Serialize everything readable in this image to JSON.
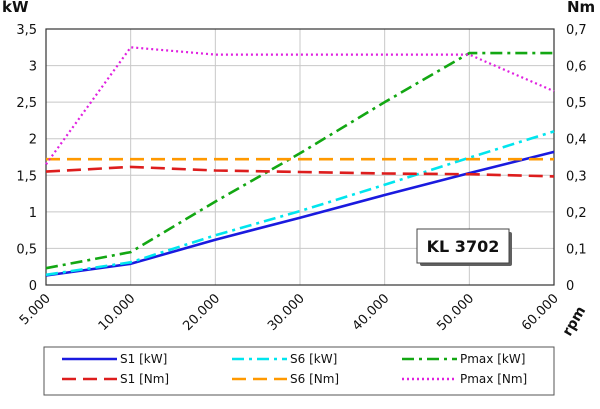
{
  "chart_data": {
    "type": "line",
    "title": "",
    "xlabel": "rpm",
    "ylabel_left": "kW",
    "ylabel_right": "Nm",
    "badge": "KL 3702",
    "x_categories": [
      "5.000",
      "10.000",
      "20.000",
      "30.000",
      "40.000",
      "50.000",
      "60.000"
    ],
    "x_values": [
      5000,
      10000,
      20000,
      30000,
      40000,
      50000,
      60000
    ],
    "y_left_ticks": [
      "0",
      "0,5",
      "1",
      "1,5",
      "2",
      "2,5",
      "3",
      "3,5"
    ],
    "y_right_ticks": [
      "0",
      "0,1",
      "0,2",
      "0,3",
      "0,4",
      "0,5",
      "0,6",
      "0,7"
    ],
    "ylim_left": [
      0,
      3.5
    ],
    "ylim_right": [
      0,
      0.7
    ],
    "grid": true,
    "legend_placement": "bottom",
    "series": [
      {
        "name": "S1 [kW]",
        "axis": "left",
        "color": "#1a1adf",
        "dash": "solid",
        "x": [
          5000,
          10000,
          20000,
          30000,
          40000,
          50000,
          60000
        ],
        "y": [
          0.13,
          0.29,
          0.62,
          0.92,
          1.23,
          1.53,
          1.82
        ]
      },
      {
        "name": "S6 [kW]",
        "axis": "left",
        "color": "#00e5ee",
        "dash": "dashdot",
        "x": [
          5000,
          10000,
          20000,
          30000,
          40000,
          50000,
          60000
        ],
        "y": [
          0.14,
          0.31,
          0.68,
          1.01,
          1.37,
          1.74,
          2.1
        ]
      },
      {
        "name": "Pmax [kW]",
        "axis": "left",
        "color": "#13a713",
        "dash": "dashdot",
        "x": [
          5000,
          10000,
          20000,
          30000,
          40000,
          50000,
          60000
        ],
        "y": [
          0.23,
          0.45,
          1.14,
          1.8,
          2.5,
          3.17,
          3.17
        ]
      },
      {
        "name": "S1 [Nm]",
        "axis": "right",
        "color": "#dd1d1d",
        "dash": "dashed",
        "x": [
          5000,
          10000,
          20000,
          30000,
          40000,
          50000,
          60000
        ],
        "y": [
          0.31,
          0.323,
          0.313,
          0.309,
          0.305,
          0.303,
          0.297
        ]
      },
      {
        "name": "S6 [Nm]",
        "axis": "right",
        "color": "#ff9900",
        "dash": "dashed",
        "x": [
          5000,
          10000,
          20000,
          30000,
          40000,
          50000,
          60000
        ],
        "y": [
          0.344,
          0.344,
          0.344,
          0.344,
          0.344,
          0.344,
          0.344
        ]
      },
      {
        "name": "Pmax [Nm]",
        "axis": "right",
        "color": "#e020e0",
        "dash": "dotted",
        "x": [
          5000,
          10000,
          20000,
          30000,
          40000,
          50000,
          60000
        ],
        "y": [
          0.33,
          0.65,
          0.63,
          0.63,
          0.63,
          0.63,
          0.53
        ]
      }
    ]
  }
}
